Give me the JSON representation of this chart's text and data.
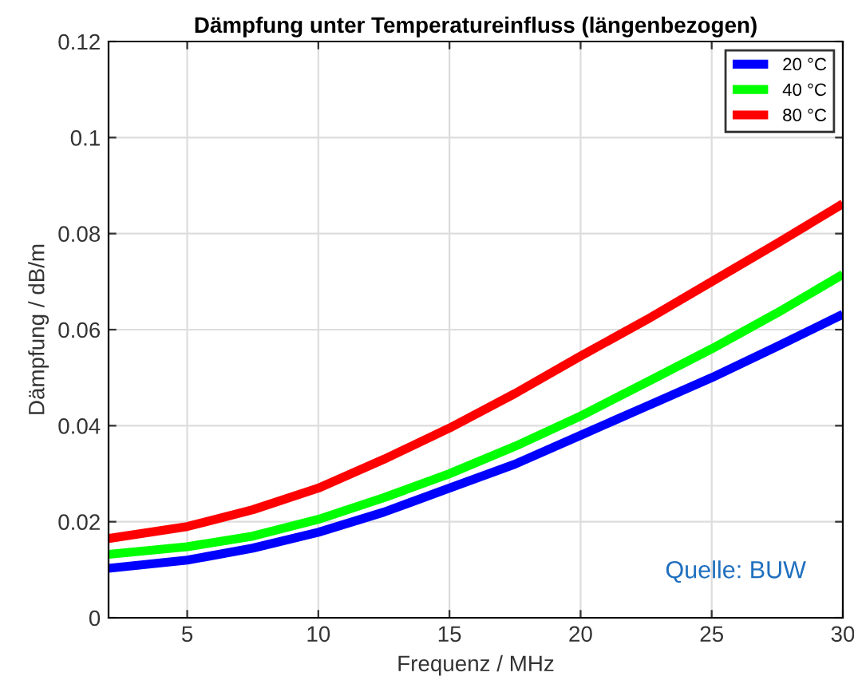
{
  "chart_data": {
    "type": "line",
    "title": "Dämpfung unter Temperatureinfluss (längenbezogen)",
    "xlabel": "Frequenz / MHz",
    "ylabel": "Dämpfung / dB/m",
    "x": [
      2,
      5,
      7.5,
      10,
      12.5,
      15,
      17.5,
      20,
      22.5,
      25,
      27.5,
      30
    ],
    "series": [
      {
        "name": "20 °C",
        "color": "#0000ff",
        "values": [
          0.0103,
          0.012,
          0.0145,
          0.0178,
          0.022,
          0.027,
          0.032,
          0.038,
          0.044,
          0.05,
          0.0565,
          0.0632
        ]
      },
      {
        "name": "40 °C",
        "color": "#00ff00",
        "values": [
          0.0132,
          0.0148,
          0.017,
          0.0205,
          0.025,
          0.03,
          0.0357,
          0.042,
          0.049,
          0.056,
          0.0635,
          0.0715
        ]
      },
      {
        "name": "80 °C",
        "color": "#ff0000",
        "values": [
          0.0165,
          0.019,
          0.0225,
          0.027,
          0.033,
          0.0395,
          0.0467,
          0.0545,
          0.062,
          0.07,
          0.078,
          0.0862
        ]
      }
    ],
    "xlim": [
      2,
      30
    ],
    "ylim": [
      0,
      0.12
    ],
    "xticks": [
      5,
      10,
      15,
      20,
      25,
      30
    ],
    "yticks": [
      0,
      0.02,
      0.04,
      0.06,
      0.08,
      0.1,
      0.12
    ],
    "grid": true,
    "legend": "top right",
    "line_style": "solid",
    "marker": "none",
    "annotations": [
      "Quelle: BUW"
    ]
  }
}
